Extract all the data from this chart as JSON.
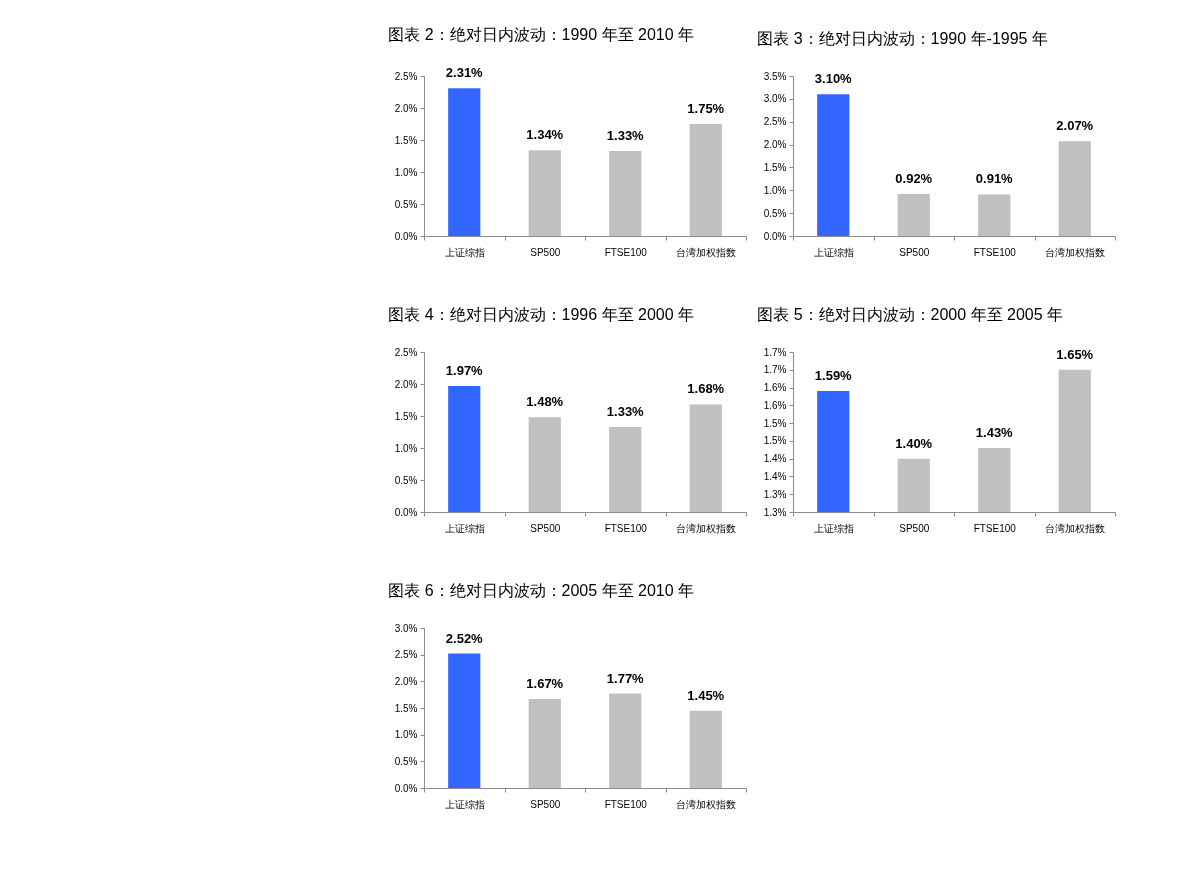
{
  "chart_data": [
    {
      "type": "bar",
      "title": "图表 2：绝对日内波动：1990 年至 2010 年",
      "categories": [
        "上证综指",
        "SP500",
        "FTSE100",
        "台湾加权指数"
      ],
      "values": [
        2.31,
        1.34,
        1.33,
        1.75
      ],
      "colors": [
        "#3366ff",
        "#c0c0c0",
        "#c0c0c0",
        "#c0c0c0"
      ],
      "value_labels": [
        "2.31%",
        "1.34%",
        "1.33%",
        "1.75%"
      ],
      "ylim": [
        0,
        2.5
      ],
      "yticks": [
        {
          "value": 0,
          "label": "0.0%"
        },
        {
          "value": 0.5,
          "label": "0.5%"
        },
        {
          "value": 1.0,
          "label": "1.0%"
        },
        {
          "value": 1.5,
          "label": "1.5%"
        },
        {
          "value": 2.0,
          "label": "2.0%"
        },
        {
          "value": 2.5,
          "label": "2.5%"
        }
      ],
      "grid": false
    },
    {
      "type": "bar",
      "title": "图表 3：绝对日内波动：1990 年-1995 年",
      "categories": [
        "上证综指",
        "SP500",
        "FTSE100",
        "台湾加权指数"
      ],
      "values": [
        3.1,
        0.92,
        0.91,
        2.07
      ],
      "colors": [
        "#3366ff",
        "#c0c0c0",
        "#c0c0c0",
        "#c0c0c0"
      ],
      "value_labels": [
        "3.10%",
        "0.92%",
        "0.91%",
        "2.07%"
      ],
      "ylim": [
        0,
        3.5
      ],
      "yticks": [
        {
          "value": 0,
          "label": "0.0%"
        },
        {
          "value": 0.5,
          "label": "0.5%"
        },
        {
          "value": 1.0,
          "label": "1.0%"
        },
        {
          "value": 1.5,
          "label": "1.5%"
        },
        {
          "value": 2.0,
          "label": "2.0%"
        },
        {
          "value": 2.5,
          "label": "2.5%"
        },
        {
          "value": 3.0,
          "label": "3.0%"
        },
        {
          "value": 3.5,
          "label": "3.5%"
        }
      ],
      "grid": false
    },
    {
      "type": "bar",
      "title": "图表 4：绝对日内波动：1996 年至 2000 年",
      "categories": [
        "上证综指",
        "SP500",
        "FTSE100",
        "台湾加权指数"
      ],
      "values": [
        1.97,
        1.48,
        1.33,
        1.68
      ],
      "colors": [
        "#3366ff",
        "#c0c0c0",
        "#c0c0c0",
        "#c0c0c0"
      ],
      "value_labels": [
        "1.97%",
        "1.48%",
        "1.33%",
        "1.68%"
      ],
      "ylim": [
        0,
        2.5
      ],
      "yticks": [
        {
          "value": 0,
          "label": "0.0%"
        },
        {
          "value": 0.5,
          "label": "0.5%"
        },
        {
          "value": 1.0,
          "label": "1.0%"
        },
        {
          "value": 1.5,
          "label": "1.5%"
        },
        {
          "value": 2.0,
          "label": "2.0%"
        },
        {
          "value": 2.5,
          "label": "2.5%"
        }
      ],
      "grid": false
    },
    {
      "type": "bar",
      "title": "图表 5：绝对日内波动：2000 年至 2005 年",
      "categories": [
        "上证综指",
        "SP500",
        "FTSE100",
        "台湾加权指数"
      ],
      "values": [
        1.59,
        1.4,
        1.43,
        1.65
      ],
      "colors": [
        "#3366ff",
        "#c0c0c0",
        "#c0c0c0",
        "#c0c0c0"
      ],
      "value_labels": [
        "1.59%",
        "1.40%",
        "1.43%",
        "1.65%"
      ],
      "ylim": [
        1.25,
        1.7
      ],
      "yticks": [
        {
          "value": 1.25,
          "label": "1.3%"
        },
        {
          "value": 1.3,
          "label": "1.3%"
        },
        {
          "value": 1.35,
          "label": "1.4%"
        },
        {
          "value": 1.4,
          "label": "1.4%"
        },
        {
          "value": 1.45,
          "label": "1.5%"
        },
        {
          "value": 1.5,
          "label": "1.5%"
        },
        {
          "value": 1.55,
          "label": "1.6%"
        },
        {
          "value": 1.6,
          "label": "1.6%"
        },
        {
          "value": 1.65,
          "label": "1.7%"
        },
        {
          "value": 1.7,
          "label": "1.7%"
        }
      ],
      "grid": false
    },
    {
      "type": "bar",
      "title": "图表 6：绝对日内波动：2005 年至 2010 年",
      "categories": [
        "上证综指",
        "SP500",
        "FTSE100",
        "台湾加权指数"
      ],
      "values": [
        2.52,
        1.67,
        1.77,
        1.45
      ],
      "colors": [
        "#3366ff",
        "#c0c0c0",
        "#c0c0c0",
        "#c0c0c0"
      ],
      "value_labels": [
        "2.52%",
        "1.67%",
        "1.77%",
        "1.45%"
      ],
      "ylim": [
        0,
        3.0
      ],
      "yticks": [
        {
          "value": 0,
          "label": "0.0%"
        },
        {
          "value": 0.5,
          "label": "0.5%"
        },
        {
          "value": 1.0,
          "label": "1.0%"
        },
        {
          "value": 1.5,
          "label": "1.5%"
        },
        {
          "value": 2.0,
          "label": "2.0%"
        },
        {
          "value": 2.5,
          "label": "2.5%"
        },
        {
          "value": 3.0,
          "label": "3.0%"
        }
      ],
      "grid": false
    }
  ]
}
